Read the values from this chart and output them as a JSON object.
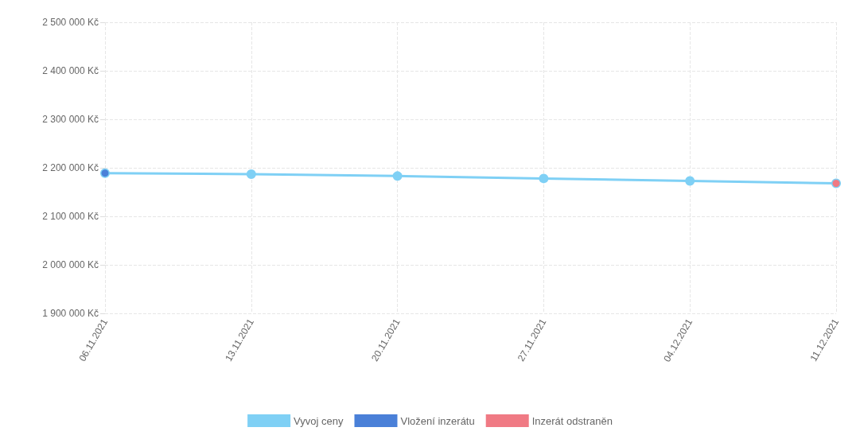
{
  "chart_data": {
    "type": "line",
    "categories": [
      "06.11.2021",
      "13.11.2021",
      "20.11.2021",
      "27.11.2021",
      "04.12.2021",
      "11.12.2021"
    ],
    "series": [
      {
        "name": "Vyvoj ceny",
        "color": "#7fd0f5",
        "values": [
          2189000,
          2187000,
          2183000,
          2178000,
          2173000,
          2168000
        ]
      },
      {
        "name": "Vložení inzerátu",
        "color": "#4a80d8",
        "type": "scatter",
        "values": [
          2189000,
          null,
          null,
          null,
          null,
          null
        ]
      },
      {
        "name": "Inzerát odstraněn",
        "color": "#f07a84",
        "type": "scatter",
        "values": [
          null,
          null,
          null,
          null,
          null,
          2168000
        ]
      }
    ],
    "ylim": [
      1900000,
      2500000
    ],
    "yticks": [
      {
        "value": 1900000,
        "label": "1 900 000 Kč"
      },
      {
        "value": 2000000,
        "label": "2 000 000 Kč"
      },
      {
        "value": 2100000,
        "label": "2 100 000 Kč"
      },
      {
        "value": 2200000,
        "label": "2 200 000 Kč"
      },
      {
        "value": 2300000,
        "label": "2 300 000 Kč"
      },
      {
        "value": 2400000,
        "label": "2 400 000 Kč"
      },
      {
        "value": 2500000,
        "label": "2 500 000 Kč"
      }
    ],
    "grid": true,
    "legend": "bottom",
    "marker": "circle"
  }
}
